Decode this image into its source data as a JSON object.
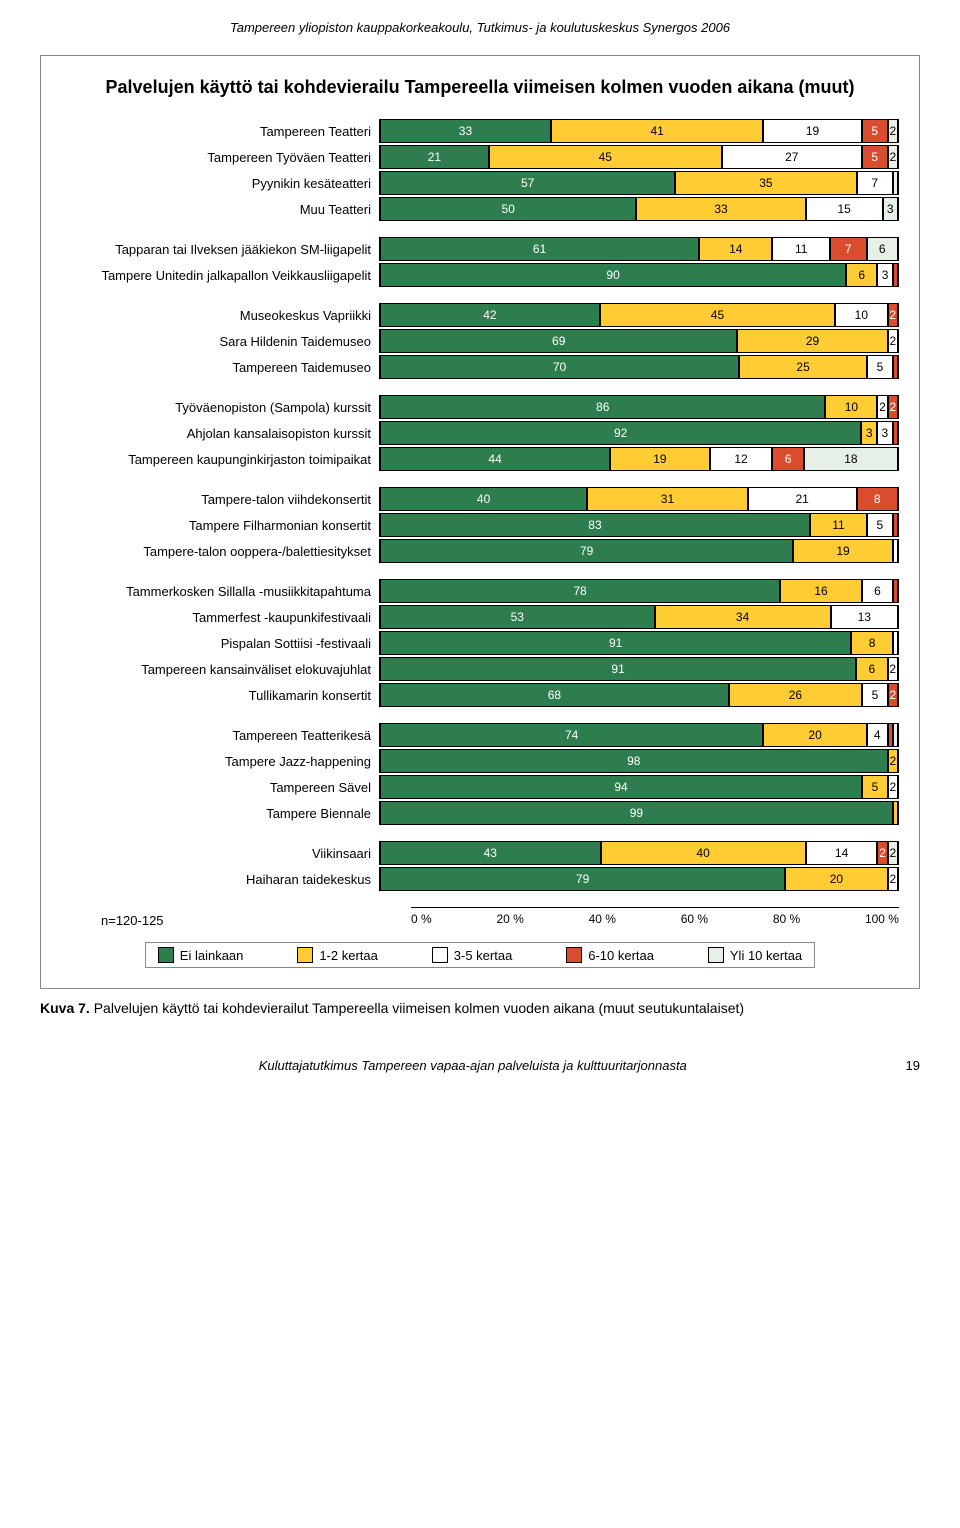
{
  "header_text": "Tampereen yliopiston kauppakorkeakoulu, Tutkimus- ja koulutuskeskus Synergos 2006",
  "chart": {
    "title": "Palvelujen käyttö tai kohdevierailu Tampereella viimeisen kolmen vuoden aikana (muut)",
    "type": "stacked_bar_horizontal",
    "n_label": "n=120-125",
    "xaxis": {
      "ticks": [
        "0 %",
        "20 %",
        "40 %",
        "60 %",
        "80 %",
        "100 %"
      ]
    },
    "colors": {
      "ei_lainkaan": "#2e7d4f",
      "k1_2": "#ffcc33",
      "k3_5": "#ffffff",
      "k6_10": "#d94d2e",
      "yli10": "#e6f0e6",
      "text_on_green": "#ffffff",
      "text_on_yellow": "#000000",
      "text_on_white": "#000000",
      "text_on_orange": "#ffffff",
      "text_on_light": "#000000"
    },
    "legend": [
      {
        "key": "ei_lainkaan",
        "label": "Ei lainkaan"
      },
      {
        "key": "k1_2",
        "label": "1-2 kertaa"
      },
      {
        "key": "k3_5",
        "label": "3-5 kertaa"
      },
      {
        "key": "k6_10",
        "label": "6-10 kertaa"
      },
      {
        "key": "yli10",
        "label": "Yli 10 kertaa"
      }
    ],
    "groups": [
      {
        "rows": [
          {
            "label": "Tampereen Teatteri",
            "values": [
              33,
              41,
              19,
              5,
              2
            ]
          },
          {
            "label": "Tampereen Työväen Teatteri",
            "values": [
              21,
              45,
              27,
              5,
              2
            ]
          },
          {
            "label": "Pyynikin kesäteatteri",
            "values": [
              57,
              35,
              7,
              0,
              1
            ]
          },
          {
            "label": "Muu Teatteri",
            "values": [
              50,
              33,
              15,
              0,
              3
            ]
          }
        ]
      },
      {
        "rows": [
          {
            "label": "Tapparan tai Ilveksen jääkiekon SM-liigapelit",
            "values": [
              61,
              14,
              11,
              7,
              6
            ]
          },
          {
            "label": "Tampere Unitedin jalkapallon Veikkausliigapelit",
            "values": [
              90,
              6,
              3,
              1,
              0
            ]
          }
        ]
      },
      {
        "rows": [
          {
            "label": "Museokeskus Vapriikki",
            "values": [
              42,
              45,
              10,
              2,
              0
            ]
          },
          {
            "label": "Sara Hildenin Taidemuseo",
            "values": [
              69,
              29,
              2,
              0,
              0
            ]
          },
          {
            "label": "Tampereen Taidemuseo",
            "values": [
              70,
              25,
              5,
              1,
              0
            ]
          }
        ]
      },
      {
        "rows": [
          {
            "label": "Työväenopiston (Sampola) kurssit",
            "values": [
              86,
              10,
              2,
              2,
              0
            ]
          },
          {
            "label": "Ahjolan kansalaisopiston kurssit",
            "values": [
              92,
              3,
              3,
              1,
              0
            ]
          },
          {
            "label": "Tampereen kaupunginkirjaston toimipaikat",
            "values": [
              44,
              19,
              12,
              6,
              18
            ]
          }
        ]
      },
      {
        "rows": [
          {
            "label": "Tampere-talon viihdekonsertit",
            "values": [
              40,
              31,
              21,
              8,
              0
            ]
          },
          {
            "label": "Tampere Filharmonian konsertit",
            "values": [
              83,
              11,
              5,
              1,
              0
            ]
          },
          {
            "label": "Tampere-talon ooppera-/balettiesitykset",
            "values": [
              79,
              19,
              1,
              0,
              0
            ]
          }
        ]
      },
      {
        "rows": [
          {
            "label": "Tammerkosken Sillalla -musiikkitapahtuma",
            "values": [
              78,
              16,
              6,
              1,
              0
            ]
          },
          {
            "label": "Tammerfest -kaupunkifestivaali",
            "values": [
              53,
              34,
              13,
              0,
              0
            ]
          },
          {
            "label": "Pispalan Sottiisi -festivaali",
            "values": [
              91,
              8,
              1,
              0,
              0
            ]
          },
          {
            "label": "Tampereen kansainväliset elokuvajuhlat",
            "values": [
              91,
              6,
              2,
              0,
              0
            ]
          },
          {
            "label": "Tullikamarin konsertit",
            "values": [
              68,
              26,
              5,
              2,
              0
            ]
          }
        ]
      },
      {
        "rows": [
          {
            "label": "Tampereen Teatterikesä",
            "values": [
              74,
              20,
              4,
              1,
              1
            ]
          },
          {
            "label": "Tampere Jazz-happening",
            "values": [
              98,
              2,
              0,
              0,
              0
            ]
          },
          {
            "label": "Tampereen Sävel",
            "values": [
              94,
              5,
              2,
              0,
              0
            ]
          },
          {
            "label": "Tampere Biennale",
            "values": [
              99,
              1,
              0,
              0,
              0
            ]
          }
        ]
      },
      {
        "rows": [
          {
            "label": "Viikinsaari",
            "values": [
              43,
              40,
              14,
              2,
              2
            ]
          },
          {
            "label": "Haiharan taidekeskus",
            "values": [
              79,
              20,
              2,
              0,
              0
            ]
          }
        ]
      }
    ]
  },
  "caption_prefix": "Kuva 7. ",
  "caption_text": "Palvelujen käyttö tai kohdevierailut Tampereella viimeisen kolmen vuoden aikana (muut seutukuntalaiset)",
  "footer_text": "Kuluttajatutkimus Tampereen vapaa-ajan palveluista ja kulttuuritarjonnasta",
  "page_number": "19"
}
